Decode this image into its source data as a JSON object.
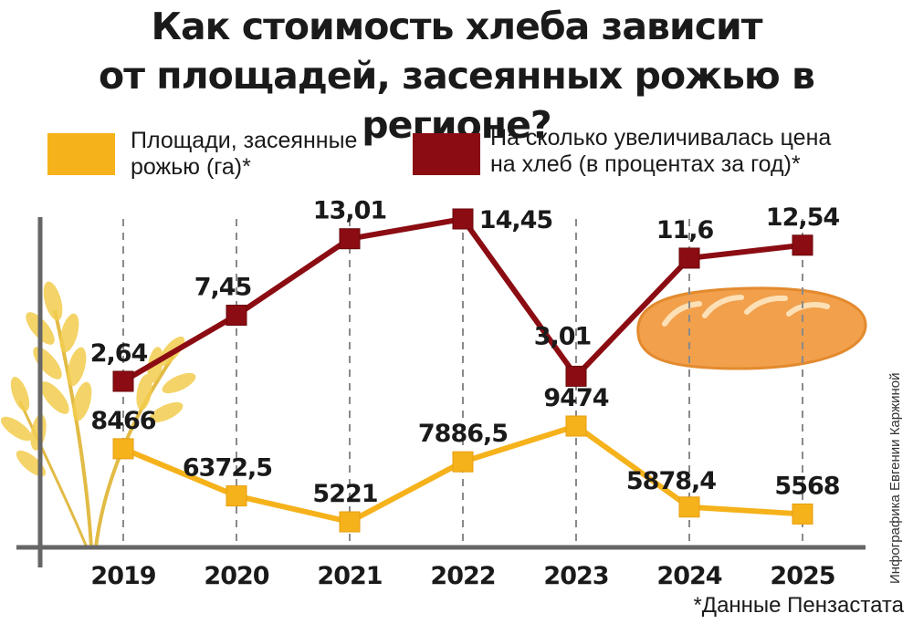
{
  "title_lines": [
    "Как стоимость хлеба зависит",
    "от площадей, засеянных рожью в регионе?"
  ],
  "legend": [
    {
      "lines": [
        "Площади, засеянные",
        "рожью  (га)*"
      ],
      "color": "#f5b21b"
    },
    {
      "lines": [
        "На сколько увеличивалась цена",
        "на хлеб (в процентах за год)*"
      ],
      "color": "#8b0c12"
    }
  ],
  "footnote": "*Данные Пензастата",
  "author": "Инфографика Евгении Каржиной",
  "chart_data": {
    "type": "line",
    "categories": [
      "2019",
      "2020",
      "2021",
      "2022",
      "2023",
      "2024",
      "2025"
    ],
    "series": [
      {
        "name": "Площади, засеянные рожью (га)*",
        "values": [
          8466,
          6372.5,
          5221,
          7886.5,
          9474,
          5878.4,
          5568
        ],
        "labels": [
          "8466",
          "6372,5",
          "5221",
          "7886,5",
          "9474",
          "5878,4",
          "5568"
        ],
        "color": "#f5b21b"
      },
      {
        "name": "На сколько увеличивалась цена на хлеб (в процентах за год)*",
        "values": [
          2.64,
          7.45,
          13.01,
          14.45,
          3.01,
          11.6,
          12.54
        ],
        "labels": [
          "2,64",
          "7,45",
          "13,01",
          "14,45",
          "3,01",
          "11,6",
          "12,54"
        ],
        "color": "#8b0c12"
      }
    ]
  }
}
